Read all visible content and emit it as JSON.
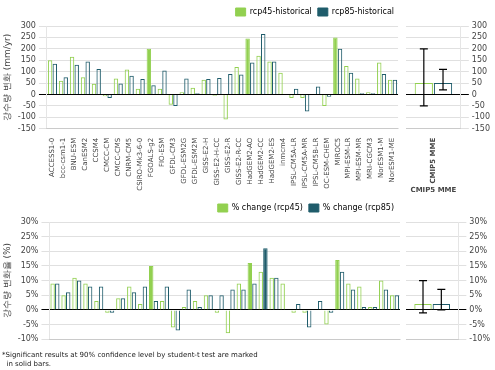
{
  "chart_data": [
    {
      "type": "bar",
      "ylabel": "강수량 변화 (mm/yr)",
      "categories": [
        "ACCESS1-0",
        "bcc-csm1-1",
        "BNU-ESM",
        "CanESM2",
        "CCSM4",
        "CMCC-CM",
        "CMCC-CMS",
        "CNRM-CM5",
        "CSIRO-Mk3-6-0",
        "FGOALS-g2",
        "FIO-ESM",
        "GFDL-CM3",
        "GFDL-ESM2G",
        "GFDL-ESM2M",
        "GISS-E2-H",
        "GISS-E2-H-CC",
        "GISS-E2-R",
        "GISS-E2-R-CC",
        "HadGEM2-AO",
        "HadGEM2-CC",
        "HadGEM2-ES",
        "inmcm4",
        "IPSL-CM5A-LR",
        "IPSL-CM5A-MR",
        "IPSL-CM5B-LR",
        "OC-ESM-CHEM",
        "MIROC5",
        "MPI-ESM-LR",
        "MPI-ESM-MR",
        "MRI-CGCM3",
        "NorESM1-M",
        "NorESM1-ME"
      ],
      "series": [
        {
          "name": "rcp45-historical",
          "color": "#92D050",
          "values": [
            150,
            60,
            165,
            75,
            47,
            -8,
            70,
            110,
            25,
            200,
            25,
            -45,
            10,
            30,
            65,
            -5,
            -110,
            120,
            245,
            170,
            145,
            95,
            -15,
            -15,
            0,
            -50,
            250,
            125,
            70,
            10,
            140,
            65
          ],
          "significant": [
            false,
            false,
            false,
            false,
            false,
            false,
            false,
            false,
            false,
            true,
            false,
            false,
            false,
            false,
            false,
            false,
            false,
            false,
            true,
            false,
            false,
            false,
            false,
            false,
            false,
            false,
            true,
            false,
            false,
            false,
            false,
            false
          ]
        },
        {
          "name": "rcp85-historical",
          "color": "#1F5C6B",
          "values": [
            135,
            75,
            130,
            145,
            112,
            -15,
            48,
            82,
            68,
            40,
            105,
            -50,
            70,
            5,
            68,
            72,
            90,
            88,
            140,
            265,
            145,
            0,
            25,
            -75,
            35,
            -10,
            200,
            95,
            5,
            5,
            90,
            65
          ],
          "significant": [
            false,
            false,
            false,
            false,
            false,
            false,
            false,
            false,
            false,
            false,
            false,
            false,
            false,
            false,
            false,
            false,
            false,
            false,
            false,
            false,
            false,
            false,
            false,
            false,
            false,
            false,
            false,
            false,
            false,
            false,
            false,
            false
          ]
        }
      ],
      "ylim": [
        -150,
        300
      ],
      "yticks": [
        -150,
        -100,
        -50,
        0,
        50,
        100,
        150,
        200,
        250,
        300
      ],
      "grid": true,
      "legend": "upper right"
    },
    {
      "type": "bar",
      "xlabel": "CMIP5 MME",
      "categories": [
        "CMIP5 MME"
      ],
      "series": [
        {
          "color": "#92D050",
          "values": [
            50
          ],
          "error_low": [
            100
          ],
          "error_high": [
            150
          ],
          "significant": [
            false
          ]
        },
        {
          "color": "#1F5C6B",
          "values": [
            50
          ],
          "error_low": [
            30
          ],
          "error_high": [
            60
          ],
          "significant": [
            false
          ]
        }
      ],
      "ylim": [
        -150,
        300
      ],
      "yticks": [
        -150,
        -100,
        -50,
        0,
        50,
        100,
        150,
        200,
        250,
        300
      ],
      "grid": true
    },
    {
      "type": "bar",
      "ylabel": "강수량 변화율 (%)",
      "annotation": "*Significant results at 90% confidence level by student-t test are marked\n  in solid bars.",
      "categories": [
        "ACCESS1-0",
        "bcc-csm1-1",
        "BNU-ESM",
        "CanESM2",
        "CCSM4",
        "CMCC-CM",
        "CMCC-CMS",
        "CNRM-CM5",
        "CSIRO-Mk3-6-0",
        "FGOALS-g2",
        "FIO-ESM",
        "GFDL-CM3",
        "GFDL-ESM2G",
        "GFDL-ESM2M",
        "GISS-E2-H",
        "GISS-E2-H-CC",
        "GISS-E2-R",
        "GISS-E2-R-CC",
        "HadGEM2-AO",
        "HadGEM2-CC",
        "HadGEM2-ES",
        "inmcm4",
        "IPSL-CM5A-LR",
        "IPSL-CM5A-MR",
        "IPSL-CM5B-LR",
        "OC-ESM-CHEM",
        "MIROC5",
        "MPI-ESM-LR",
        "MPI-ESM-MR",
        "MRI-CGCM3",
        "NorESM1-M",
        "NorESM1-ME"
      ],
      "series": [
        {
          "name": "% change (rcp45)",
          "color": "#92D050",
          "values": [
            9,
            5,
            11,
            9,
            3,
            -1,
            4,
            8,
            2,
            15,
            3,
            -6,
            1,
            3,
            5,
            -1,
            -8,
            9,
            16,
            13,
            11,
            9,
            -1,
            -1,
            0,
            -5,
            17,
            9,
            8,
            1,
            10,
            5
          ],
          "significant": [
            false,
            false,
            false,
            false,
            false,
            false,
            false,
            false,
            false,
            true,
            false,
            false,
            false,
            false,
            false,
            false,
            false,
            false,
            true,
            false,
            false,
            false,
            false,
            false,
            false,
            false,
            true,
            false,
            false,
            false,
            false,
            false
          ]
        },
        {
          "name": "% change (rcp85)",
          "color": "#1F5C6B",
          "values": [
            9,
            6,
            10,
            8,
            8,
            -1,
            4,
            6,
            8,
            3,
            8,
            -7,
            7,
            1,
            5,
            5,
            7,
            7,
            9,
            21,
            11,
            0,
            2,
            -6,
            3,
            -1,
            13,
            7,
            1,
            1,
            7,
            5
          ],
          "significant": [
            false,
            false,
            false,
            false,
            false,
            false,
            false,
            false,
            false,
            false,
            false,
            false,
            false,
            false,
            false,
            false,
            false,
            false,
            false,
            true,
            false,
            false,
            false,
            false,
            false,
            false,
            false,
            false,
            false,
            false,
            false,
            false
          ]
        }
      ],
      "ylim": [
        -10,
        30
      ],
      "yticks": [
        {
          "value": -10,
          "label": "-10%"
        },
        {
          "value": -5,
          "label": "-5%"
        },
        {
          "value": 0,
          "label": "0%"
        },
        {
          "value": 5,
          "label": "5%"
        },
        {
          "value": 10,
          "label": "10%"
        },
        {
          "value": 15,
          "label": "15%"
        },
        {
          "value": 20,
          "label": "20%"
        },
        {
          "value": 25,
          "label": "25%"
        },
        {
          "value": 30,
          "label": "30%"
        }
      ],
      "grid": true,
      "legend": "upper right",
      "tick_labels": "y"
    },
    {
      "type": "bar",
      "categories": [
        "CMIP5 MME"
      ],
      "series": [
        {
          "color": "#92D050",
          "values": [
            2
          ],
          "error_low": [
            3
          ],
          "error_high": [
            8
          ],
          "significant": [
            false
          ]
        },
        {
          "color": "#1F5C6B",
          "values": [
            2
          ],
          "error_low": [
            2
          ],
          "error_high": [
            5
          ],
          "significant": [
            false
          ]
        }
      ],
      "ylim": [
        -10,
        30
      ],
      "yticks": [
        {
          "value": -10,
          "label": "-10%"
        },
        {
          "value": -5,
          "label": "-5%"
        },
        {
          "value": 0,
          "label": "0%"
        },
        {
          "value": 5,
          "label": "5%"
        },
        {
          "value": 10,
          "label": "10%"
        },
        {
          "value": 15,
          "label": "15%"
        },
        {
          "value": 20,
          "label": "20%"
        },
        {
          "value": 25,
          "label": "25%"
        },
        {
          "value": 30,
          "label": "30%"
        }
      ],
      "grid": true,
      "tick_labels": "y"
    }
  ]
}
